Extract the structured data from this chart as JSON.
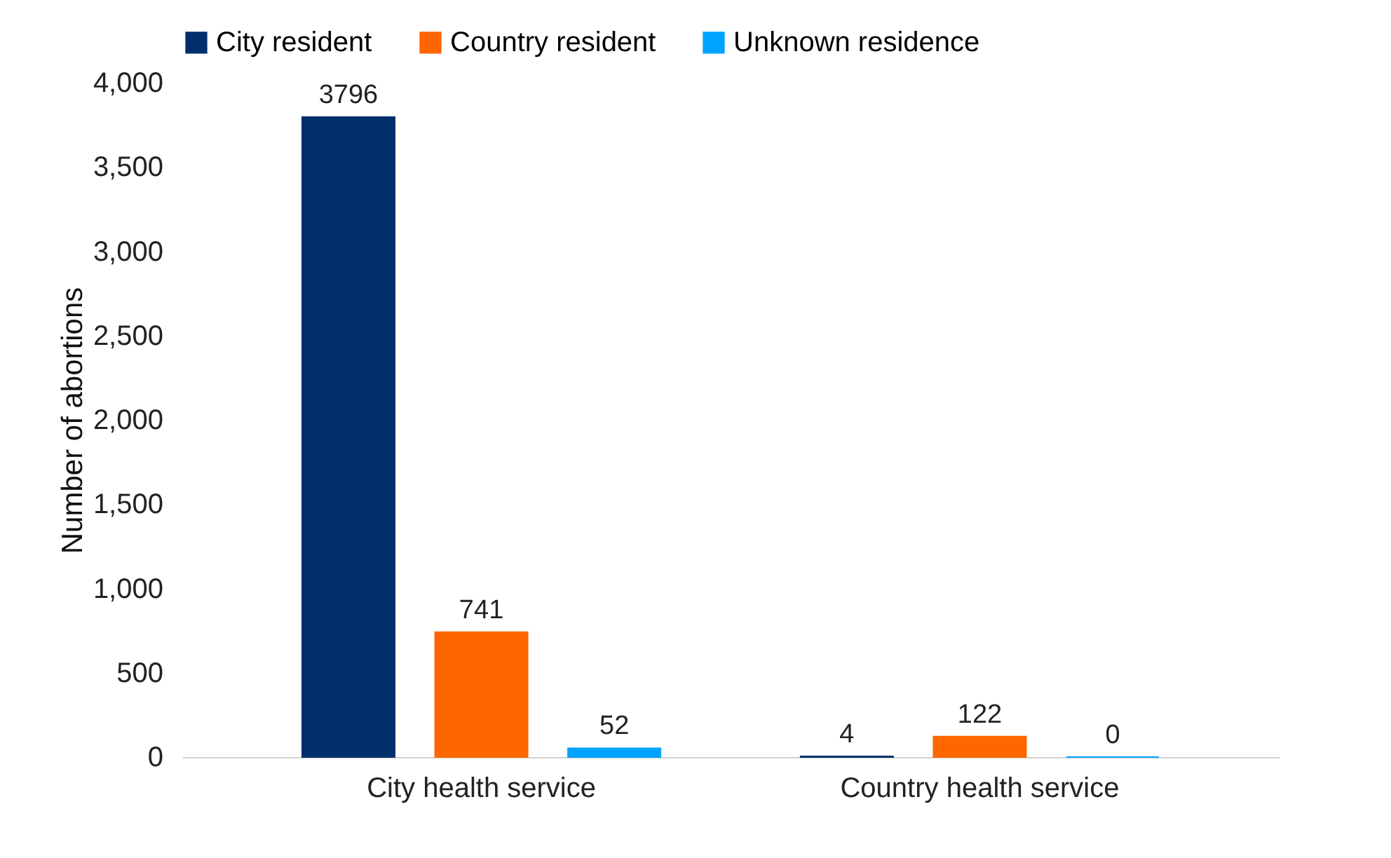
{
  "chart_data": {
    "type": "bar",
    "ylabel": "Number of abortions",
    "categories": [
      "City health service",
      "Country health service"
    ],
    "series": [
      {
        "name": "City resident",
        "color": "#002f6c",
        "values": [
          3796,
          4
        ]
      },
      {
        "name": "Country resident",
        "color": "#ff6600",
        "values": [
          741,
          122
        ]
      },
      {
        "name": "Unknown residence",
        "color": "#00a3ff",
        "values": [
          52,
          0
        ]
      }
    ],
    "ylim": [
      0,
      4000
    ],
    "yticks": [
      {
        "value": 0,
        "label": "0"
      },
      {
        "value": 500,
        "label": "500"
      },
      {
        "value": 1000,
        "label": "1,000"
      },
      {
        "value": 1500,
        "label": "1,500"
      },
      {
        "value": 2000,
        "label": "2,000"
      },
      {
        "value": 2500,
        "label": "2,500"
      },
      {
        "value": 3000,
        "label": "3,000"
      },
      {
        "value": 3500,
        "label": "3,500"
      },
      {
        "value": 4000,
        "label": "4,000"
      }
    ],
    "data_labels": true,
    "legend": "top",
    "grid": false
  }
}
